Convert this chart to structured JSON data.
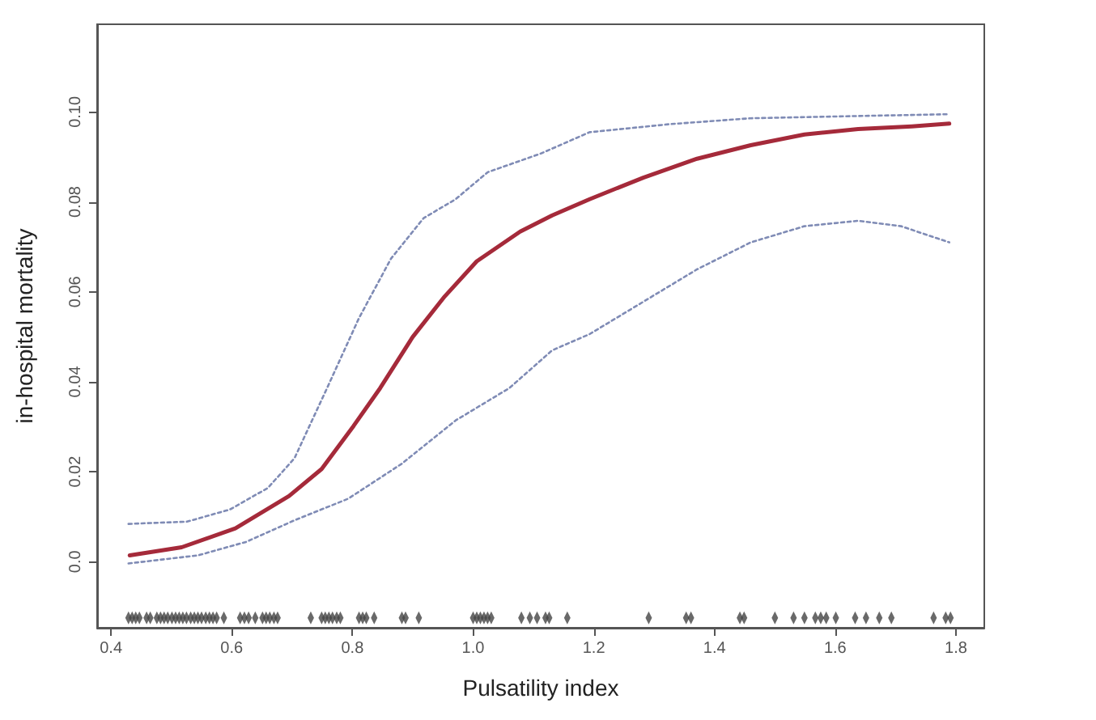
{
  "chart_data": {
    "type": "line",
    "xlabel": "Pulsatility index",
    "ylabel": "in-hospital mortality",
    "xlim": [
      0.377,
      1.847
    ],
    "ylim": [
      -0.0147,
      0.1195
    ],
    "xticks": [
      0.4,
      0.6,
      0.8,
      {
        "value": 1.0,
        "label": "1.0"
      },
      1.2,
      1.4,
      1.6,
      1.8
    ],
    "yticks": [
      {
        "value": 0,
        "label": "0.0"
      },
      0.02,
      0.04,
      0.06,
      0.08,
      {
        "value": 0.1,
        "label": "0.10"
      }
    ],
    "grid": false,
    "series": [
      {
        "color": "#7f8bb5",
        "line_style": "dotted",
        "x": [
          0.429,
          0.526,
          0.597,
          0.66,
          0.704,
          0.758,
          0.811,
          0.864,
          0.918,
          0.971,
          1.024,
          1.113,
          1.193,
          1.327,
          1.46,
          1.638,
          1.789
        ],
        "values": [
          0.0084,
          0.0089,
          0.0116,
          0.0164,
          0.023,
          0.0386,
          0.0542,
          0.0674,
          0.0764,
          0.0806,
          0.0866,
          0.0908,
          0.0955,
          0.0973,
          0.0986,
          0.0991,
          0.0995
        ]
      },
      {
        "color": "#7f8bb5",
        "line_style": "dotted",
        "x": [
          0.429,
          0.544,
          0.624,
          0.704,
          0.793,
          0.882,
          0.971,
          1.06,
          1.131,
          1.193,
          1.282,
          1.371,
          1.46,
          1.549,
          1.638,
          1.709,
          1.789
        ],
        "values": [
          -0.0004,
          0.0014,
          0.0044,
          0.0092,
          0.014,
          0.0218,
          0.0314,
          0.0386,
          0.047,
          0.0506,
          0.0578,
          0.065,
          0.071,
          0.0746,
          0.0758,
          0.0746,
          0.071
        ]
      },
      {
        "color": "#a52a3a",
        "line_style": "solid",
        "x": [
          0.431,
          0.517,
          0.606,
          0.695,
          0.749,
          0.802,
          0.846,
          0.9,
          0.953,
          1.006,
          1.078,
          1.131,
          1.193,
          1.282,
          1.371,
          1.46,
          1.549,
          1.638,
          1.727,
          1.789
        ],
        "values": [
          0.0014,
          0.0032,
          0.0074,
          0.0146,
          0.0206,
          0.0302,
          0.0386,
          0.05,
          0.059,
          0.0668,
          0.0734,
          0.077,
          0.0806,
          0.0854,
          0.0896,
          0.0926,
          0.095,
          0.0962,
          0.0968,
          0.0974
        ]
      },
      {
        "type": "scatter",
        "color": "#444444",
        "marker": "diamond",
        "x": [
          0.429,
          0.435,
          0.441,
          0.447,
          0.459,
          0.465,
          0.476,
          0.482,
          0.488,
          0.494,
          0.501,
          0.507,
          0.513,
          0.519,
          0.525,
          0.532,
          0.538,
          0.544,
          0.55,
          0.557,
          0.563,
          0.569,
          0.575,
          0.587,
          0.614,
          0.621,
          0.628,
          0.639,
          0.651,
          0.657,
          0.663,
          0.67,
          0.676,
          0.731,
          0.749,
          0.755,
          0.761,
          0.767,
          0.774,
          0.78,
          0.811,
          0.817,
          0.823,
          0.836,
          0.882,
          0.888,
          0.91,
          1.0,
          1.006,
          1.012,
          1.018,
          1.024,
          1.03,
          1.08,
          1.094,
          1.106,
          1.12,
          1.126,
          1.156,
          1.291,
          1.353,
          1.361,
          1.442,
          1.449,
          1.5,
          1.531,
          1.549,
          1.567,
          1.576,
          1.585,
          1.601,
          1.633,
          1.651,
          1.673,
          1.693,
          1.763,
          1.783,
          1.791
        ],
        "values": [
          -0.0125,
          -0.0125,
          -0.0125,
          -0.0125,
          -0.0125,
          -0.0125,
          -0.0125,
          -0.0125,
          -0.0125,
          -0.0125,
          -0.0125,
          -0.0125,
          -0.0125,
          -0.0125,
          -0.0125,
          -0.0125,
          -0.0125,
          -0.0125,
          -0.0125,
          -0.0125,
          -0.0125,
          -0.0125,
          -0.0125,
          -0.0125,
          -0.0125,
          -0.0125,
          -0.0125,
          -0.0125,
          -0.0125,
          -0.0125,
          -0.0125,
          -0.0125,
          -0.0125,
          -0.0125,
          -0.0125,
          -0.0125,
          -0.0125,
          -0.0125,
          -0.0125,
          -0.0125,
          -0.0125,
          -0.0125,
          -0.0125,
          -0.0125,
          -0.0125,
          -0.0125,
          -0.0125,
          -0.0125,
          -0.0125,
          -0.0125,
          -0.0125,
          -0.0125,
          -0.0125,
          -0.0125,
          -0.0125,
          -0.0125,
          -0.0125,
          -0.0125,
          -0.0125,
          -0.0125,
          -0.0125,
          -0.0125,
          -0.0125,
          -0.0125,
          -0.0125,
          -0.0125,
          -0.0125,
          -0.0125,
          -0.0125,
          -0.0125,
          -0.0125,
          -0.0125,
          -0.0125,
          -0.0125,
          -0.0125,
          -0.0125,
          -0.0125,
          -0.0125
        ]
      }
    ]
  }
}
